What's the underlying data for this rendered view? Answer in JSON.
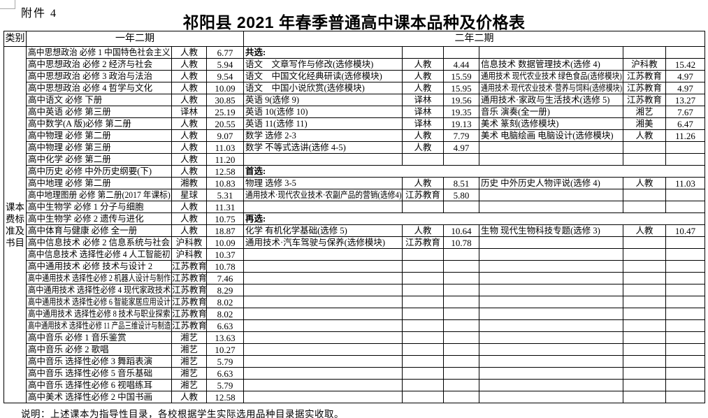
{
  "page": {
    "attachment_label": "附件 4",
    "title": "祁阳县 2021 年春季普通高中课本品种及价格表",
    "footnote": "说明：上述课本为指导性目录，各校根据学生实际选用品种目录据实收取。"
  },
  "table": {
    "headers": {
      "category": "类别",
      "term1": "一年二期",
      "term2": "二年二期"
    },
    "category_label": "课本费标准及书目",
    "section_labels": {
      "common": "共选:",
      "first_choice": "首选:",
      "second_choice": "再选:"
    },
    "rows": [
      {
        "l": [
          "高中思想政治 必修 1 中国特色社会主义",
          "人教",
          "6.77"
        ],
        "m": [
          "共选:",
          "",
          ""
        ],
        "m_bold": true,
        "r": [
          "",
          "",
          ""
        ]
      },
      {
        "l": [
          "高中思想政治 必修 2  经济与社会",
          "人教",
          "5.94"
        ],
        "m": [
          "语文　文章写作与修改(选修模块)",
          "人教",
          "4.44"
        ],
        "r": [
          "信息技术  数据管理技术(选修 4)",
          "沪科教",
          "15.42"
        ]
      },
      {
        "l": [
          "高中思想政治 必修 3  政治与法治",
          "人教",
          "9.54"
        ],
        "m": [
          "语文　中国文化经典研读(选修模块)",
          "人教",
          "15.59"
        ],
        "r": [
          "通用技术 现代农业技术 绿色食品(选修模块)",
          "江苏教育",
          "4.97"
        ]
      },
      {
        "l": [
          "高中思想政治 必修 4  哲学与文化",
          "人教",
          "10.09"
        ],
        "m": [
          "语文　中国小说欣赏(选修模块)",
          "人教",
          "15.95"
        ],
        "r": [
          "通用技术·现代农业技术·营养与饲料(选修模块)",
          "江苏教育",
          "4.97"
        ]
      },
      {
        "l": [
          "高中语文 必修 下册",
          "人教",
          "30.85"
        ],
        "m": [
          "英语 9(选修 9)",
          "译林",
          "19.56"
        ],
        "r": [
          "通用技术·家政与生活技术(选修 5)",
          "江苏教育",
          "13.27"
        ]
      },
      {
        "l": [
          "高中英语 必修 第三册",
          "译林",
          "25.19"
        ],
        "m": [
          "英语 10(选修 10)",
          "译林",
          "19.35"
        ],
        "r": [
          "音乐  演奏(全一册)",
          "湘艺",
          "7.67"
        ]
      },
      {
        "l": [
          "高中数学(A 版)必修 第二册",
          "人教",
          "20.55"
        ],
        "m": [
          "英语 11(选修 11)",
          "译林",
          "19.13"
        ],
        "r": [
          "美术  篆刻(选修模块)",
          "湘美",
          "6.47"
        ]
      },
      {
        "l": [
          "高中物理 必修 第二册",
          "人教",
          "9.07"
        ],
        "m": [
          "数学  选修 2-3",
          "人教",
          "7.79"
        ],
        "r": [
          "美术 电脑绘画 电脑设计(选修模块)",
          "人教",
          "11.26"
        ]
      },
      {
        "l": [
          "高中物理 必修 第三册",
          "人教",
          "11.03"
        ],
        "m": [
          "数学  不等式选讲(选修 4-5)",
          "人教",
          "4.97"
        ],
        "r": [
          "",
          "",
          ""
        ]
      },
      {
        "l": [
          "高中化学 必修 第二册",
          "人教",
          "11.20"
        ],
        "m": [
          "",
          "",
          ""
        ],
        "r": [
          "",
          "",
          ""
        ]
      },
      {
        "l": [
          "高中历史 必修 中外历史纲要(下)",
          "人教",
          "12.58"
        ],
        "span": "首选:"
      },
      {
        "l": [
          "高中地理 必修 第二册",
          "湘教",
          "10.83"
        ],
        "m": [
          "物理  选修 3-5",
          "人教",
          "8.51"
        ],
        "r": [
          "历史  中外历史人物评说(选修 4)",
          "人教",
          "11.03"
        ]
      },
      {
        "l": [
          "高中地理图册 必修 第二册(2017 年课标)",
          "星球",
          "5.31"
        ],
        "m": [
          "通用技术·现代农业技术·农副产品的营销(选修4)",
          "江苏教育",
          "5.80"
        ],
        "r": [
          "",
          "",
          ""
        ]
      },
      {
        "l": [
          "高中生物学 必修 1 分子与细胞",
          "人教",
          "11.31"
        ],
        "m": [
          "",
          "",
          ""
        ],
        "r": [
          "",
          "",
          ""
        ]
      },
      {
        "l": [
          "高中生物学 必修 2 遗传与进化",
          "人教",
          "10.75"
        ],
        "span": "再选:"
      },
      {
        "l": [
          "高中体育与健康 必修 全一册",
          "人教",
          "18.87"
        ],
        "m": [
          "化学  有机化学基础(选修 5)",
          "人教",
          "10.64"
        ],
        "r": [
          "生物  现代生物科技专题(选修 3)",
          "人教",
          "10.47"
        ]
      },
      {
        "l": [
          "高中信息技术 必修 2 信息系统与社会",
          "沪科教",
          "10.09"
        ],
        "m": [
          "通用技术·汽车驾驶与保养(选修模块)",
          "江苏教育",
          "10.78"
        ],
        "r": [
          "",
          "",
          ""
        ]
      },
      {
        "l": [
          "高中信息技术 选择性必修 4 人工智能初",
          "沪科教",
          "10.37"
        ],
        "m": [
          "",
          "",
          ""
        ],
        "r": [
          "",
          "",
          ""
        ]
      },
      {
        "l": [
          "高中通用技术 必修  技术与设计 2",
          "江苏教育",
          "10.78"
        ],
        "m": [
          "",
          "",
          ""
        ],
        "r": [
          "",
          "",
          ""
        ]
      },
      {
        "l": [
          "高中通用技术 选择性必修 2 机器人设计与制作",
          "江苏教育",
          "7.46"
        ],
        "m": [
          "",
          "",
          ""
        ],
        "r": [
          "",
          "",
          ""
        ]
      },
      {
        "l": [
          "高中通用技术 选择性必修 4 现代家政技术",
          "江苏教育",
          "8.29"
        ],
        "m": [
          "",
          "",
          ""
        ],
        "r": [
          "",
          "",
          ""
        ]
      },
      {
        "l": [
          "高中通用技术 选择性必修 6 智能家居应用设计",
          "江苏教育",
          "8.02"
        ],
        "m": [
          "",
          "",
          ""
        ],
        "r": [
          "",
          "",
          ""
        ]
      },
      {
        "l": [
          "高中通用技术 选择性必修 8 技术与职业探索",
          "江苏教育",
          "8.02"
        ],
        "m": [
          "",
          "",
          ""
        ],
        "r": [
          "",
          "",
          ""
        ]
      },
      {
        "l": [
          "高中通用技术 选择性必修 11 产品三维设计与制造",
          "江苏教育",
          "6.63"
        ],
        "m": [
          "",
          "",
          ""
        ],
        "r": [
          "",
          "",
          ""
        ]
      },
      {
        "l": [
          "高中音乐 必修 1 音乐鉴赏",
          "湘艺",
          "13.63"
        ],
        "m": [
          "",
          "",
          ""
        ],
        "r": [
          "",
          "",
          ""
        ]
      },
      {
        "l": [
          "高中音乐 必修 2 歌唱",
          "湘艺",
          "10.27"
        ],
        "m": [
          "",
          "",
          ""
        ],
        "r": [
          "",
          "",
          ""
        ]
      },
      {
        "l": [
          "高中音乐 选择性必修 3 舞蹈表演",
          "湘艺",
          "5.79"
        ],
        "m": [
          "",
          "",
          ""
        ],
        "r": [
          "",
          "",
          ""
        ]
      },
      {
        "l": [
          "高中音乐 选择性必修 5 音乐基础",
          "湘艺",
          "6.63"
        ],
        "m": [
          "",
          "",
          ""
        ],
        "r": [
          "",
          "",
          ""
        ]
      },
      {
        "l": [
          "高中音乐 选择性必修 6 视唱练耳",
          "湘艺",
          "5.79"
        ],
        "m": [
          "",
          "",
          ""
        ],
        "r": [
          "",
          "",
          ""
        ]
      },
      {
        "l": [
          "高中美术 选择性必修 2 中国书画",
          "人教",
          "12.58"
        ],
        "m": [
          "",
          "",
          ""
        ],
        "r": [
          "",
          "",
          ""
        ]
      }
    ]
  }
}
